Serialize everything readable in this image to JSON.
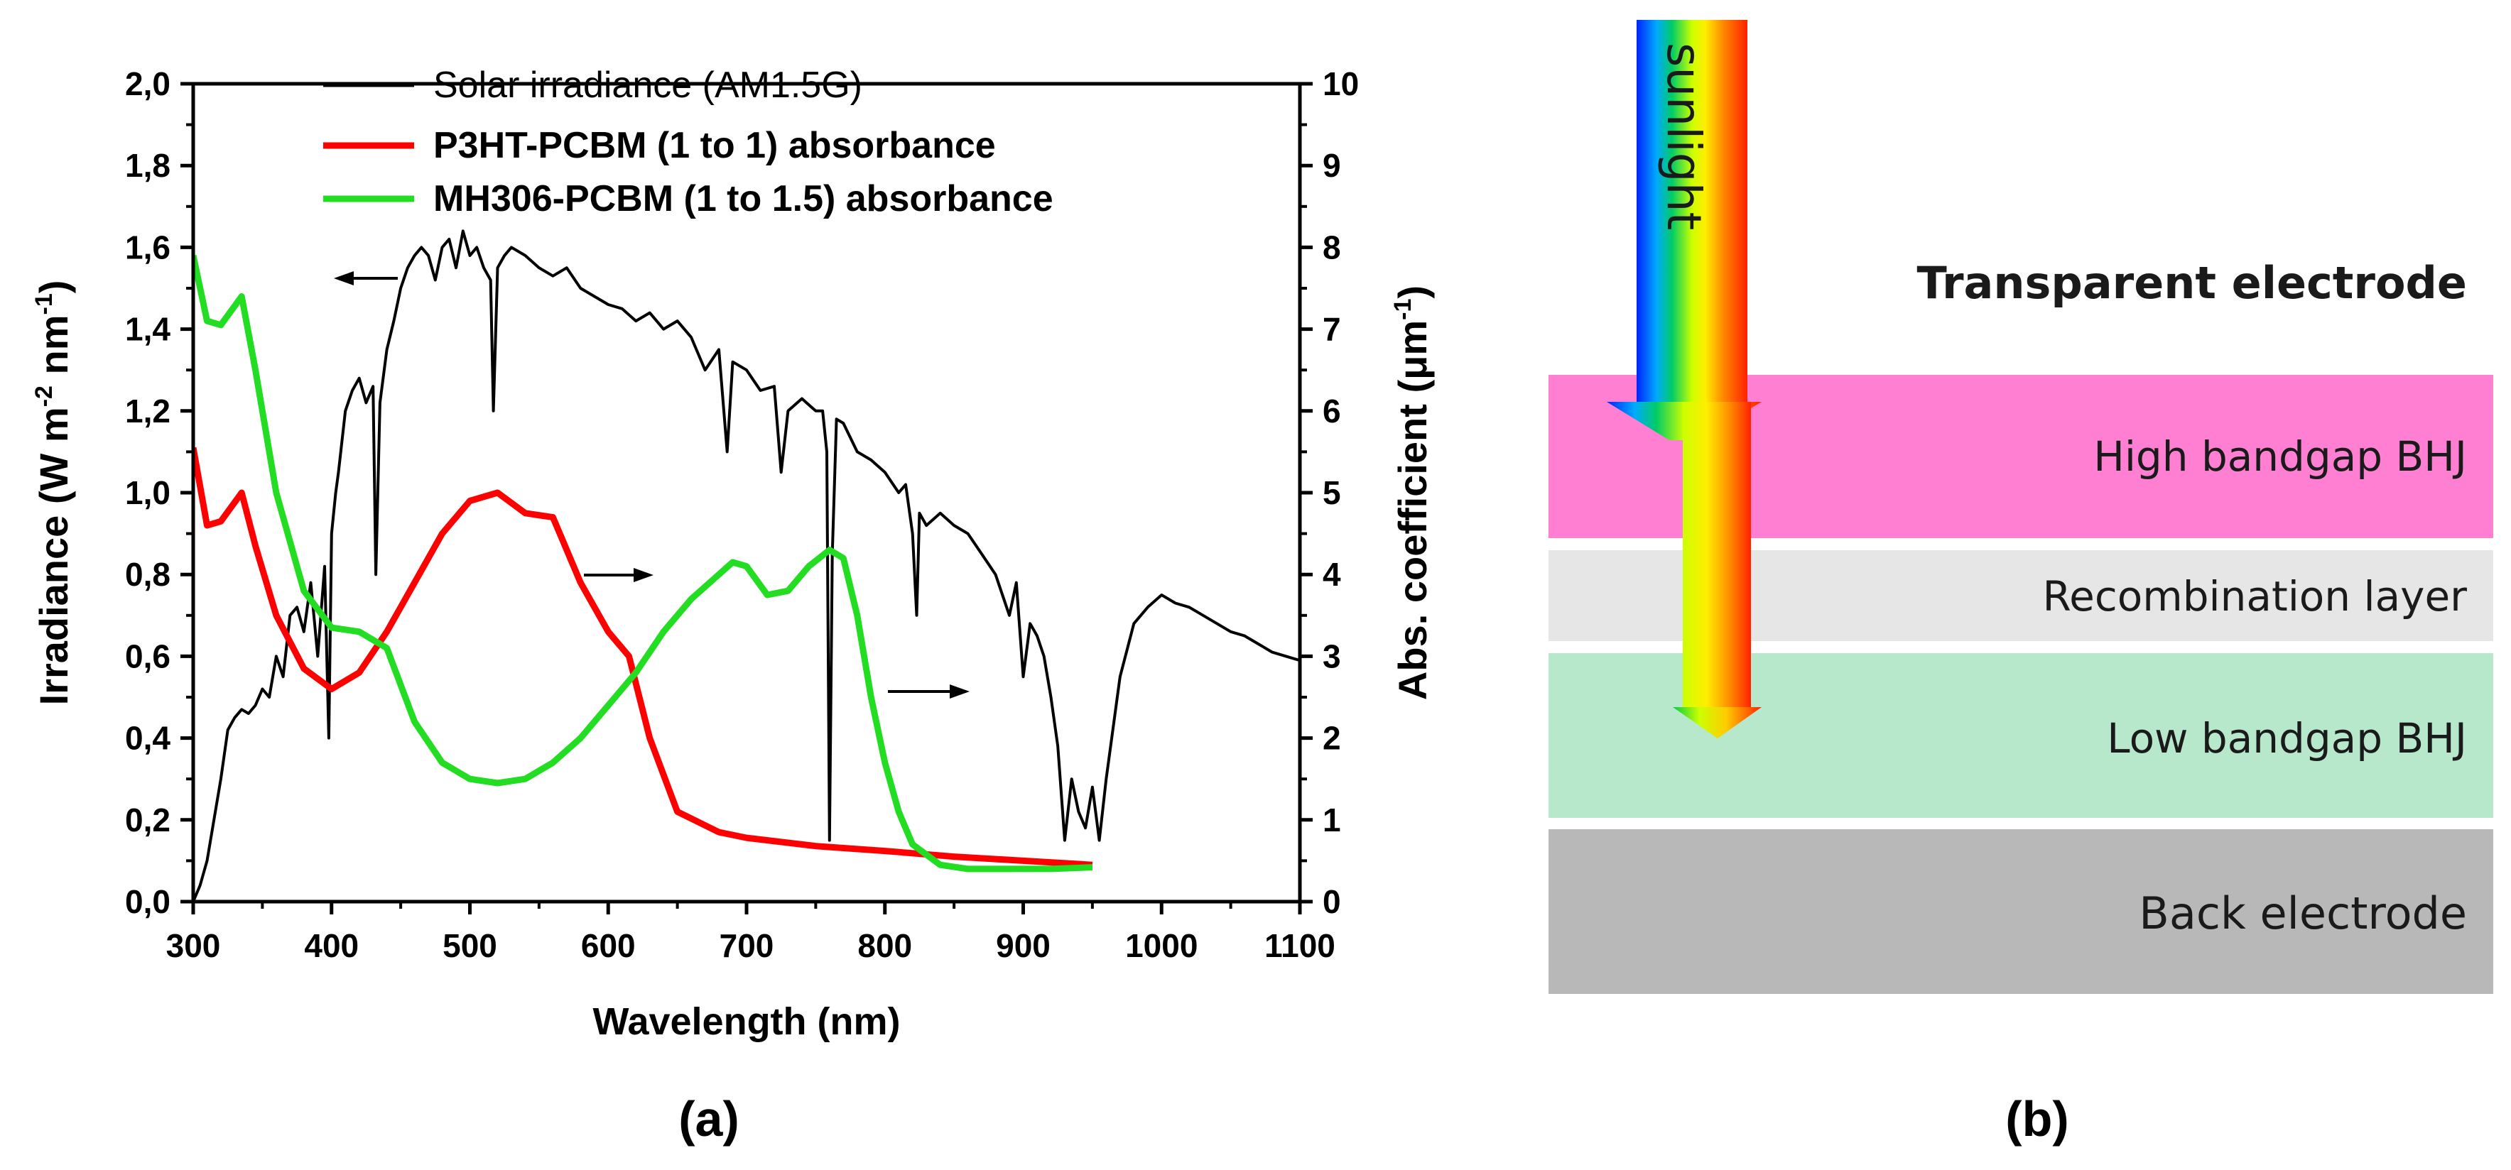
{
  "panel_a": {
    "label": "(a)",
    "xlabel": "Wavelength (nm)",
    "ylabel_left": "Irradiance (W m",
    "ylabel_left_sup1": "-2",
    "ylabel_left_mid": " nm",
    "ylabel_left_sup2": "-1",
    "ylabel_left_end": ")",
    "ylabel_right": "Abs. coefficient (μm",
    "ylabel_right_sup": "-1",
    "ylabel_right_end": ")",
    "x_ticks": [
      "300",
      "400",
      "500",
      "600",
      "700",
      "800",
      "900",
      "1000",
      "1100"
    ],
    "y_left_ticks": [
      "0,0",
      "0,2",
      "0,4",
      "0,6",
      "0,8",
      "1,0",
      "1,2",
      "1,4",
      "1,6",
      "1,8",
      "2,0"
    ],
    "y_right_ticks": [
      "0",
      "1",
      "2",
      "3",
      "4",
      "5",
      "6",
      "7",
      "8",
      "9",
      "10"
    ]
  },
  "panel_b": {
    "label": "(b)",
    "sunlight": "sunlight",
    "layers": {
      "transparent": "Transparent electrode",
      "high": "High bandgap BHJ",
      "recomb": "Recombination layer",
      "low": "Low bandgap BHJ",
      "back": "Back electrode"
    }
  },
  "colors": {
    "solar": "#000000",
    "p3ht": "#ff0000",
    "mh306": "#22dd22",
    "high_layer": "#ff7fd2",
    "recomb_layer": "#e6e6e6",
    "low_layer": "#b7e8cc",
    "back_layer": "#b8b8b8"
  },
  "chart_data": {
    "type": "line",
    "title": "",
    "xlabel": "Wavelength (nm)",
    "ylabel": "Irradiance (W m-2 nm-1)",
    "y2label": "Abs. coefficient (μm-1)",
    "xlim": [
      300,
      1100
    ],
    "ylim": [
      0,
      2.0
    ],
    "y2lim": [
      0,
      10
    ],
    "legend_position": "top-center",
    "series": [
      {
        "name": "Solar irradiance (AM1.5G)",
        "axis": "left",
        "x": [
          300,
          305,
          310,
          315,
          320,
          325,
          330,
          335,
          340,
          345,
          350,
          355,
          360,
          365,
          370,
          375,
          380,
          385,
          390,
          395,
          398,
          400,
          403,
          405,
          410,
          415,
          420,
          425,
          430,
          432,
          435,
          440,
          445,
          450,
          455,
          460,
          465,
          470,
          475,
          480,
          485,
          490,
          495,
          500,
          505,
          510,
          515,
          517,
          520,
          525,
          530,
          540,
          550,
          560,
          570,
          580,
          590,
          600,
          610,
          620,
          630,
          640,
          650,
          660,
          670,
          680,
          686,
          690,
          700,
          710,
          720,
          725,
          730,
          740,
          750,
          755,
          758,
          760,
          762,
          765,
          770,
          780,
          790,
          800,
          810,
          815,
          820,
          823,
          825,
          830,
          840,
          850,
          860,
          870,
          880,
          890,
          895,
          900,
          905,
          910,
          915,
          920,
          925,
          930,
          935,
          940,
          945,
          950,
          955,
          960,
          970,
          980,
          990,
          1000,
          1010,
          1020,
          1030,
          1040,
          1050,
          1060,
          1070,
          1080,
          1090,
          1100
        ],
        "values": [
          0.0,
          0.04,
          0.1,
          0.2,
          0.3,
          0.42,
          0.45,
          0.47,
          0.46,
          0.48,
          0.52,
          0.5,
          0.6,
          0.55,
          0.7,
          0.72,
          0.66,
          0.78,
          0.6,
          0.82,
          0.4,
          0.9,
          1.0,
          1.05,
          1.2,
          1.25,
          1.28,
          1.22,
          1.26,
          0.8,
          1.22,
          1.35,
          1.42,
          1.5,
          1.55,
          1.58,
          1.6,
          1.58,
          1.52,
          1.6,
          1.62,
          1.55,
          1.64,
          1.58,
          1.6,
          1.55,
          1.52,
          1.2,
          1.55,
          1.58,
          1.6,
          1.58,
          1.55,
          1.53,
          1.55,
          1.5,
          1.48,
          1.46,
          1.45,
          1.42,
          1.44,
          1.4,
          1.42,
          1.38,
          1.3,
          1.35,
          1.1,
          1.32,
          1.3,
          1.25,
          1.26,
          1.05,
          1.2,
          1.23,
          1.2,
          1.2,
          1.1,
          0.15,
          0.85,
          1.18,
          1.17,
          1.1,
          1.08,
          1.05,
          1.0,
          1.02,
          0.9,
          0.7,
          0.95,
          0.92,
          0.95,
          0.92,
          0.9,
          0.85,
          0.8,
          0.7,
          0.78,
          0.55,
          0.68,
          0.65,
          0.6,
          0.5,
          0.38,
          0.15,
          0.3,
          0.22,
          0.18,
          0.28,
          0.15,
          0.3,
          0.55,
          0.68,
          0.72,
          0.75,
          0.73,
          0.72,
          0.7,
          0.68,
          0.66,
          0.65,
          0.63,
          0.61,
          0.6,
          0.59
        ]
      },
      {
        "name": "P3HT-PCBM (1 to 1) absorbance",
        "axis": "right",
        "x": [
          300,
          310,
          320,
          335,
          345,
          360,
          380,
          400,
          420,
          440,
          460,
          480,
          500,
          520,
          540,
          560,
          580,
          600,
          615,
          630,
          650,
          680,
          700,
          750,
          800,
          850,
          900,
          950
        ],
        "values": [
          5.55,
          4.6,
          4.65,
          5.0,
          4.35,
          3.5,
          2.85,
          2.6,
          2.8,
          3.3,
          3.9,
          4.5,
          4.9,
          5.0,
          4.75,
          4.7,
          3.9,
          3.3,
          3.0,
          2.0,
          1.1,
          0.85,
          0.78,
          0.68,
          0.62,
          0.55,
          0.5,
          0.45
        ]
      },
      {
        "name": "MH306-PCBM (1 to 1.5) absorbance",
        "axis": "right",
        "x": [
          300,
          310,
          320,
          335,
          345,
          360,
          380,
          400,
          420,
          440,
          460,
          480,
          500,
          520,
          540,
          560,
          580,
          600,
          620,
          640,
          660,
          680,
          690,
          700,
          715,
          730,
          745,
          760,
          770,
          780,
          790,
          800,
          810,
          820,
          840,
          860,
          880,
          900,
          920,
          950
        ],
        "values": [
          7.9,
          7.1,
          7.05,
          7.4,
          6.5,
          5.0,
          3.8,
          3.35,
          3.3,
          3.1,
          2.2,
          1.7,
          1.5,
          1.45,
          1.5,
          1.7,
          2.0,
          2.4,
          2.8,
          3.3,
          3.7,
          4.0,
          4.15,
          4.1,
          3.75,
          3.8,
          4.1,
          4.3,
          4.2,
          3.5,
          2.5,
          1.7,
          1.1,
          0.7,
          0.45,
          0.4,
          0.4,
          0.4,
          0.4,
          0.42
        ]
      }
    ]
  }
}
